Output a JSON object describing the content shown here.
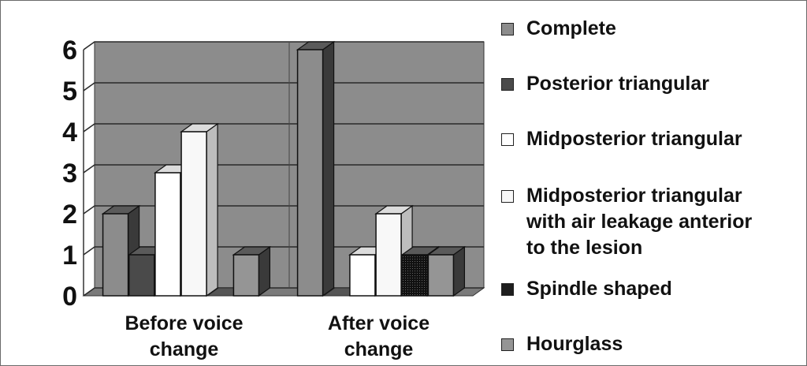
{
  "chart_data": {
    "type": "bar",
    "title": "",
    "xlabel": "",
    "ylabel": "",
    "ylim": [
      0,
      6
    ],
    "yticks": [
      "0",
      "1",
      "2",
      "3",
      "4",
      "5",
      "6"
    ],
    "grid": true,
    "legend_position": "right",
    "categories": [
      "Before voice change",
      "After voice change"
    ],
    "categories_display": [
      [
        "Before voice",
        "change"
      ],
      [
        "After voice",
        "change"
      ]
    ],
    "series": [
      {
        "name": "Complete",
        "values": [
          2,
          6
        ],
        "color": "#8c8c8c"
      },
      {
        "name": "Posterior triangular",
        "values": [
          1,
          0
        ],
        "color": "#4a4a4a"
      },
      {
        "name": "Midposterior triangular",
        "values": [
          3,
          1
        ],
        "color": "#ffffff"
      },
      {
        "name": "Midposterior triangular with air leakage anterior to the lesion",
        "values": [
          4,
          2
        ],
        "color": "#f8f8f8"
      },
      {
        "name": "Spindle shaped",
        "values": [
          0,
          1
        ],
        "color": "#1e1e1e"
      },
      {
        "name": "Hourglass",
        "values": [
          1,
          1
        ],
        "color": "#959595"
      }
    ],
    "legend_lines": [
      [
        "Complete"
      ],
      [
        "Posterior triangular"
      ],
      [
        "Midposterior triangular"
      ],
      [
        "Midposterior triangular",
        "with air leakage anterior",
        "to the lesion"
      ],
      [
        "Spindle shaped"
      ],
      [
        "Hourglass"
      ]
    ]
  }
}
